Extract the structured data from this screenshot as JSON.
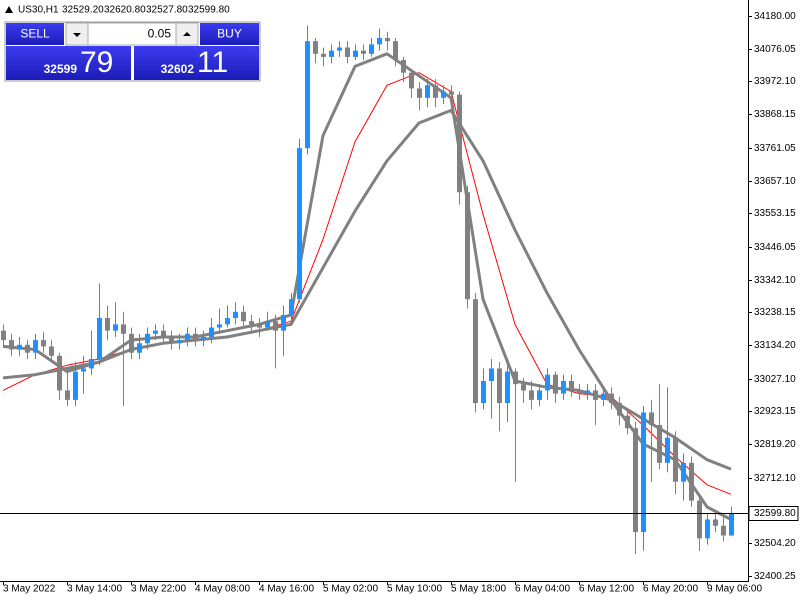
{
  "chart_data": {
    "type": "candlestick",
    "symbol": "US30,H1",
    "header_ohlc": [
      {
        "value": 32529.2,
        "label": "32529.20"
      },
      {
        "value": 32620.8,
        "label": "32620.80"
      },
      {
        "value": 32527.8,
        "label": "32527.80"
      },
      {
        "value": 32599.8,
        "label": "32599.80"
      }
    ],
    "categories": [
      "3 May 2022",
      null,
      null,
      null,
      null,
      null,
      null,
      null,
      "3 May 14:00",
      null,
      null,
      null,
      null,
      null,
      null,
      null,
      "3 May 22:00",
      null,
      null,
      null,
      null,
      null,
      null,
      null,
      "4 May 08:00",
      null,
      null,
      null,
      null,
      null,
      null,
      null,
      "4 May 16:00",
      null,
      null,
      null,
      null,
      null,
      null,
      null,
      "5 May 02:00",
      null,
      null,
      null,
      null,
      null,
      null,
      null,
      "5 May 10:00",
      null,
      null,
      null,
      null,
      null,
      null,
      null,
      "5 May 18:00",
      null,
      null,
      null,
      null,
      null,
      null,
      null,
      "6 May 04:00",
      null,
      null,
      null,
      null,
      null,
      null,
      null,
      "6 May 12:00",
      null,
      null,
      null,
      null,
      null,
      null,
      null,
      "6 May 20:00",
      null,
      null,
      null,
      null,
      null,
      null,
      null,
      "9 May 06:00",
      null,
      null,
      null
    ],
    "open": [
      33180,
      33150,
      33120,
      33135,
      33110,
      33150,
      33130,
      33100,
      32990,
      32960,
      33050,
      33060,
      33090,
      33220,
      33180,
      33200,
      33170,
      33110,
      33140,
      33170,
      33180,
      33160,
      33140,
      33150,
      33170,
      33150,
      33160,
      33190,
      33200,
      33220,
      33240,
      33210,
      33200,
      33190,
      33210,
      33180,
      33230,
      33280,
      33760,
      34100,
      34060,
      34050,
      34070,
      34080,
      34050,
      34070,
      34060,
      34090,
      34110,
      34100,
      34040,
      34000,
      33950,
      33920,
      33960,
      33920,
      33940,
      33930,
      33620,
      33280,
      32950,
      33020,
      33060,
      32950,
      33050,
      33010,
      32990,
      32960,
      32990,
      33040,
      32980,
      33020,
      32990,
      32980,
      32990,
      32960,
      32980,
      32950,
      32910,
      32870,
      32540,
      32920,
      32880,
      32760,
      32840,
      32700,
      32760,
      32640,
      32520,
      32580,
      32560,
      32529.2
    ],
    "high": [
      33200,
      33170,
      33160,
      33150,
      33170,
      33175,
      33150,
      33110,
      33060,
      33080,
      33100,
      33180,
      33330,
      33260,
      33270,
      33240,
      33190,
      33170,
      33190,
      33200,
      33200,
      33180,
      33170,
      33190,
      33190,
      33180,
      33220,
      33250,
      33260,
      33270,
      33260,
      33230,
      33220,
      33240,
      33230,
      33260,
      33300,
      33790,
      34150,
      34110,
      34080,
      34090,
      34100,
      34100,
      34090,
      34090,
      34110,
      34140,
      34130,
      34110,
      34050,
      34010,
      33970,
      33980,
      33980,
      33960,
      33960,
      33940,
      33640,
      33300,
      33060,
      33090,
      33080,
      33070,
      33060,
      33030,
      33020,
      33010,
      33060,
      33050,
      33040,
      33040,
      33010,
      33010,
      33010,
      33000,
      33000,
      32970,
      32930,
      32890,
      32940,
      32960,
      33010,
      33000,
      32860,
      32790,
      32780,
      32660,
      32600,
      32600,
      32590,
      32620.8
    ],
    "low": [
      33130,
      33100,
      33100,
      33090,
      33090,
      33110,
      33080,
      32960,
      32940,
      32940,
      32980,
      33040,
      33070,
      33150,
      33160,
      32940,
      33090,
      33090,
      33120,
      33150,
      33140,
      33120,
      33120,
      33130,
      33130,
      33130,
      33140,
      33170,
      33190,
      33200,
      33190,
      33170,
      33160,
      33180,
      33060,
      33100,
      33200,
      33270,
      33740,
      34030,
      34020,
      34030,
      34050,
      34030,
      34040,
      34040,
      34050,
      34070,
      34070,
      34020,
      33970,
      33920,
      33880,
      33890,
      33890,
      33900,
      33900,
      33580,
      33250,
      32920,
      32930,
      32900,
      32860,
      32890,
      32700,
      32950,
      32930,
      32940,
      32960,
      32950,
      32960,
      32970,
      32960,
      32960,
      32880,
      32940,
      32930,
      32880,
      32850,
      32470,
      32480,
      32700,
      32740,
      32730,
      32660,
      32640,
      32620,
      32480,
      32500,
      32540,
      32510,
      32527.8
    ],
    "close": [
      33150,
      33120,
      33135,
      33110,
      33150,
      33130,
      33100,
      32990,
      32960,
      33050,
      33060,
      33090,
      33220,
      33180,
      33200,
      33170,
      33110,
      33140,
      33170,
      33180,
      33160,
      33140,
      33150,
      33170,
      33150,
      33160,
      33190,
      33200,
      33220,
      33240,
      33210,
      33200,
      33190,
      33210,
      33180,
      33230,
      33280,
      33760,
      34100,
      34060,
      34050,
      34070,
      34080,
      34050,
      34070,
      34060,
      34090,
      34110,
      34100,
      34040,
      34000,
      33950,
      33920,
      33960,
      33920,
      33940,
      33930,
      33620,
      33280,
      32950,
      33020,
      33060,
      32950,
      33050,
      33010,
      32990,
      32960,
      32990,
      33040,
      32980,
      33020,
      32990,
      32980,
      32990,
      32960,
      32980,
      32950,
      32910,
      32870,
      32540,
      32920,
      32880,
      32760,
      32840,
      32700,
      32760,
      32640,
      32520,
      32580,
      32560,
      32529.2,
      32599.8
    ],
    "up_color": "#1e90ff",
    "down_color": "#808080",
    "lines": [
      {
        "color": "#ff0000",
        "width": 1,
        "x": [
          0,
          4,
          8,
          12,
          16,
          20,
          24,
          28,
          32,
          36,
          40,
          44,
          48,
          52,
          56,
          60,
          64,
          68,
          72,
          76,
          80,
          84,
          88,
          91
        ],
        "values": [
          32990,
          33040,
          33070,
          33090,
          33120,
          33140,
          33150,
          33160,
          33180,
          33210,
          33470,
          33780,
          33960,
          34000,
          33940,
          33550,
          33200,
          33010,
          32980,
          32970,
          32880,
          32780,
          32690,
          32660
        ]
      },
      {
        "color": "#808080",
        "width": 3,
        "x": [
          0,
          4,
          8,
          12,
          16,
          20,
          24,
          28,
          32,
          36,
          40,
          44,
          48,
          52,
          56,
          60,
          64,
          68,
          72,
          76,
          80,
          84,
          88,
          91
        ],
        "values": [
          33030,
          33040,
          33060,
          33080,
          33120,
          33140,
          33150,
          33160,
          33180,
          33200,
          33380,
          33560,
          33720,
          33840,
          33880,
          33720,
          33500,
          33300,
          33120,
          32960,
          32900,
          32840,
          32770,
          32740
        ]
      },
      {
        "color": "#808080",
        "width": 3,
        "x": [
          0,
          4,
          8,
          12,
          16,
          20,
          24,
          28,
          32,
          36,
          40,
          44,
          48,
          52,
          56,
          60,
          64,
          68,
          72,
          76,
          80,
          84,
          88,
          91
        ],
        "values": [
          33130,
          33120,
          33050,
          33080,
          33150,
          33160,
          33160,
          33180,
          33200,
          33230,
          33800,
          34020,
          34060,
          33990,
          33920,
          33280,
          33020,
          33000,
          32990,
          32960,
          32820,
          32770,
          32620,
          32580
        ]
      }
    ],
    "ylim": [
      32384.4,
      34230.9
    ],
    "yticks": [
      {
        "value": 34180,
        "label": "34180.00"
      },
      {
        "value": 34076.05,
        "label": "34076.05"
      },
      {
        "value": 33972.1,
        "label": "33972.10"
      },
      {
        "value": 33868.15,
        "label": "33868.15"
      },
      {
        "value": 33761.05,
        "label": "33761.05"
      },
      {
        "value": 33657.1,
        "label": "33657.10"
      },
      {
        "value": 33553.15,
        "label": "33553.15"
      },
      {
        "value": 33446.05,
        "label": "33446.05"
      },
      {
        "value": 33342.1,
        "label": "33342.10"
      },
      {
        "value": 33238.15,
        "label": "33238.15"
      },
      {
        "value": 33134.2,
        "label": "33134.20"
      },
      {
        "value": 33027.1,
        "label": "33027.10"
      },
      {
        "value": 32923.15,
        "label": "32923.15"
      },
      {
        "value": 32819.2,
        "label": "32819.20"
      },
      {
        "value": 32712.1,
        "label": "32712.10"
      },
      {
        "value": 32504.2,
        "label": "32504.20"
      },
      {
        "value": 32400.25,
        "label": "32400.25"
      }
    ],
    "current_price": {
      "value": 32599.8,
      "label": "32599.80"
    }
  },
  "trade_panel": {
    "sell": "SELL",
    "buy": "BUY",
    "volume": "0.05",
    "bid_main": "32599",
    "bid_digits": "79",
    "ask_main": "32602",
    "ask_digits": "11"
  }
}
